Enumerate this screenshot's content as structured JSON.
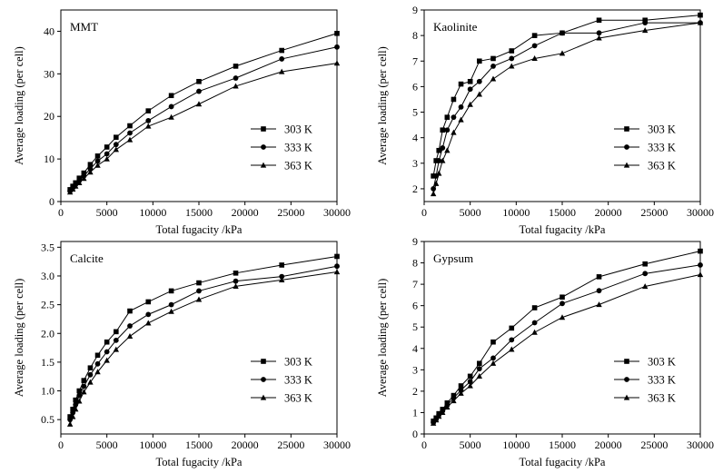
{
  "chart_data": [
    {
      "type": "line",
      "panel_label": "MMT",
      "xlabel": "Total fugacity /kPa",
      "ylabel": "Average loading (per cell)",
      "xlim": [
        0,
        30000
      ],
      "ylim": [
        0,
        45
      ],
      "xticks": [
        0,
        5000,
        10000,
        15000,
        20000,
        25000,
        30000
      ],
      "yticks": [
        0,
        10,
        20,
        30,
        40
      ],
      "legend_position": "bottom-right",
      "series": [
        {
          "name": "303 K",
          "marker": "square",
          "x": [
            1000,
            1300,
            1600,
            2000,
            2500,
            3200,
            4000,
            5000,
            6000,
            7500,
            9500,
            12000,
            15000,
            19000,
            24000,
            30000
          ],
          "y": [
            2.8,
            3.6,
            4.4,
            5.5,
            6.7,
            8.7,
            10.7,
            12.8,
            15.1,
            17.8,
            21.3,
            24.9,
            28.2,
            31.8,
            35.5,
            39.5
          ]
        },
        {
          "name": "333 K",
          "marker": "circle",
          "x": [
            1000,
            1300,
            1600,
            2000,
            2500,
            3200,
            4000,
            5000,
            6000,
            7500,
            9500,
            12000,
            15000,
            19000,
            24000,
            30000
          ],
          "y": [
            2.5,
            3.2,
            4.0,
            4.9,
            6.0,
            7.7,
            9.5,
            11.2,
            13.4,
            16.1,
            19.0,
            22.3,
            25.9,
            29.0,
            33.5,
            36.3
          ]
        },
        {
          "name": "363 K",
          "marker": "triangle",
          "x": [
            1000,
            1300,
            1600,
            2000,
            2500,
            3200,
            4000,
            5000,
            6000,
            7500,
            9500,
            12000,
            15000,
            19000,
            24000,
            30000
          ],
          "y": [
            2.2,
            2.9,
            3.6,
            4.4,
            5.4,
            6.9,
            8.5,
            10.0,
            12.2,
            14.5,
            17.7,
            19.8,
            22.9,
            27.1,
            30.5,
            32.5
          ]
        }
      ]
    },
    {
      "type": "line",
      "panel_label": "Kaolinite",
      "xlabel": "Total fugacity /kPa",
      "ylabel": "Average loading (per cell)",
      "xlim": [
        0,
        30000
      ],
      "ylim": [
        1.5,
        9
      ],
      "xticks": [
        0,
        5000,
        10000,
        15000,
        20000,
        25000,
        30000
      ],
      "yticks": [
        2,
        3,
        4,
        5,
        6,
        7,
        8,
        9
      ],
      "legend_position": "bottom-right",
      "series": [
        {
          "name": "303 K",
          "marker": "square",
          "x": [
            1000,
            1300,
            1600,
            2000,
            2500,
            3200,
            4000,
            5000,
            6000,
            7500,
            9500,
            12000,
            15000,
            19000,
            24000,
            30000
          ],
          "y": [
            2.5,
            3.1,
            3.5,
            4.3,
            4.8,
            5.5,
            6.1,
            6.2,
            7.0,
            7.1,
            7.4,
            8.0,
            8.1,
            8.6,
            8.6,
            8.8
          ]
        },
        {
          "name": "333 K",
          "marker": "circle",
          "x": [
            1000,
            1300,
            1600,
            2000,
            2500,
            3200,
            4000,
            5000,
            6000,
            7500,
            9500,
            12000,
            15000,
            19000,
            24000,
            30000
          ],
          "y": [
            2.0,
            2.5,
            3.1,
            3.6,
            4.3,
            4.8,
            5.2,
            5.9,
            6.2,
            6.8,
            7.1,
            7.6,
            8.1,
            8.1,
            8.5,
            8.5
          ]
        },
        {
          "name": "363 K",
          "marker": "triangle",
          "x": [
            1000,
            1300,
            1600,
            2000,
            2500,
            3200,
            4000,
            5000,
            6000,
            7500,
            9500,
            12000,
            15000,
            19000,
            24000,
            30000
          ],
          "y": [
            1.8,
            2.2,
            2.6,
            3.1,
            3.5,
            4.2,
            4.7,
            5.3,
            5.7,
            6.3,
            6.8,
            7.1,
            7.3,
            7.9,
            8.2,
            8.5
          ]
        }
      ]
    },
    {
      "type": "line",
      "panel_label": "Calcite",
      "xlabel": "Total fugacity /kPa",
      "ylabel": "Average loading (per cell)",
      "xlim": [
        0,
        30000
      ],
      "ylim": [
        0.25,
        3.6
      ],
      "xticks": [
        0,
        5000,
        10000,
        15000,
        20000,
        25000,
        30000
      ],
      "yticks": [
        0.5,
        1.0,
        1.5,
        2.0,
        2.5,
        3.0,
        3.5
      ],
      "ytick_labels": [
        "0.5",
        "1.0",
        "1.5",
        "2.0",
        "2.5",
        "3.0",
        "3.5"
      ],
      "legend_position": "bottom-right",
      "series": [
        {
          "name": "303 K",
          "marker": "square",
          "x": [
            1000,
            1300,
            1600,
            2000,
            2500,
            3200,
            4000,
            5000,
            6000,
            7500,
            9500,
            12000,
            15000,
            19000,
            24000,
            30000
          ],
          "y": [
            0.55,
            0.68,
            0.84,
            1.0,
            1.18,
            1.4,
            1.62,
            1.85,
            2.03,
            2.39,
            2.55,
            2.74,
            2.88,
            3.05,
            3.19,
            3.34
          ]
        },
        {
          "name": "333 K",
          "marker": "circle",
          "x": [
            1000,
            1300,
            1600,
            2000,
            2500,
            3200,
            4000,
            5000,
            6000,
            7500,
            9500,
            12000,
            15000,
            19000,
            24000,
            30000
          ],
          "y": [
            0.5,
            0.62,
            0.76,
            0.92,
            1.08,
            1.28,
            1.47,
            1.68,
            1.88,
            2.13,
            2.33,
            2.5,
            2.74,
            2.91,
            2.99,
            3.17
          ]
        },
        {
          "name": "363 K",
          "marker": "triangle",
          "x": [
            1000,
            1300,
            1600,
            2000,
            2500,
            3200,
            4000,
            5000,
            6000,
            7500,
            9500,
            12000,
            15000,
            19000,
            24000,
            30000
          ],
          "y": [
            0.42,
            0.55,
            0.68,
            0.82,
            0.98,
            1.15,
            1.33,
            1.53,
            1.72,
            1.95,
            2.18,
            2.38,
            2.59,
            2.82,
            2.93,
            3.07
          ]
        }
      ]
    },
    {
      "type": "line",
      "panel_label": "Gypsum",
      "xlabel": "Total fugacity /kPa",
      "ylabel": "Average loading (per cell)",
      "xlim": [
        0,
        30000
      ],
      "ylim": [
        0,
        9
      ],
      "xticks": [
        0,
        5000,
        10000,
        15000,
        20000,
        25000,
        30000
      ],
      "yticks": [
        0,
        1,
        2,
        3,
        4,
        5,
        6,
        7,
        8,
        9
      ],
      "legend_position": "bottom-right",
      "series": [
        {
          "name": "303 K",
          "marker": "square",
          "x": [
            1000,
            1300,
            1600,
            2000,
            2500,
            3200,
            4000,
            5000,
            6000,
            7500,
            9500,
            12000,
            15000,
            19000,
            24000,
            30000
          ],
          "y": [
            0.6,
            0.75,
            0.95,
            1.15,
            1.45,
            1.8,
            2.25,
            2.7,
            3.3,
            4.3,
            4.95,
            5.9,
            6.4,
            7.35,
            7.95,
            8.55
          ]
        },
        {
          "name": "333 K",
          "marker": "circle",
          "x": [
            1000,
            1300,
            1600,
            2000,
            2500,
            3200,
            4000,
            5000,
            6000,
            7500,
            9500,
            12000,
            15000,
            19000,
            24000,
            30000
          ],
          "y": [
            0.55,
            0.7,
            0.9,
            1.08,
            1.35,
            1.68,
            2.05,
            2.45,
            3.05,
            3.55,
            4.4,
            5.2,
            6.1,
            6.7,
            7.5,
            7.9
          ]
        },
        {
          "name": "363 K",
          "marker": "triangle",
          "x": [
            1000,
            1300,
            1600,
            2000,
            2500,
            3200,
            4000,
            5000,
            6000,
            7500,
            9500,
            12000,
            15000,
            19000,
            24000,
            30000
          ],
          "y": [
            0.5,
            0.65,
            0.82,
            1.0,
            1.25,
            1.55,
            1.9,
            2.25,
            2.7,
            3.3,
            3.95,
            4.75,
            5.45,
            6.05,
            6.9,
            7.45
          ]
        }
      ]
    }
  ]
}
